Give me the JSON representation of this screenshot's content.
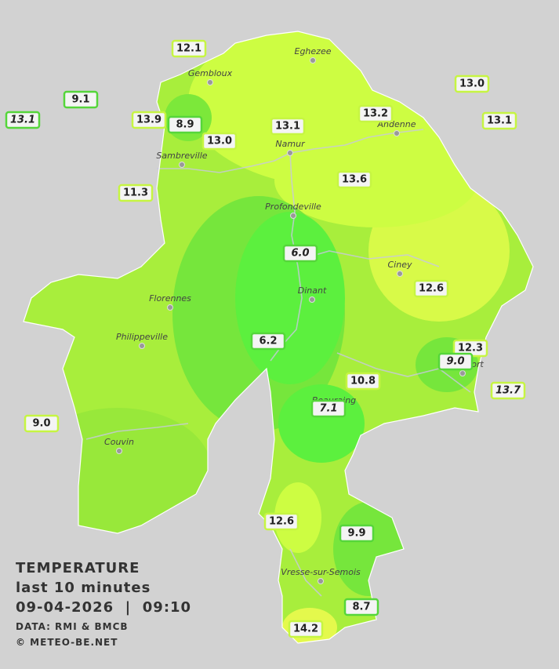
{
  "map": {
    "towns": [
      "Eghezee",
      "Gembloux",
      "Andenne",
      "Namur",
      "Sambreville",
      "Profondeville",
      "Ciney",
      "Dinant",
      "Florennes",
      "Philippeville",
      "Rochefort",
      "Beauraing",
      "Couvin",
      "Vresse-sur-Semois"
    ],
    "stations": [
      "12.1",
      "9.1",
      "13.1",
      "13.9",
      "8.9",
      "13.0",
      "13.1",
      "13.2",
      "13.0",
      "13.1",
      "11.3",
      "13.6",
      "6.0",
      "12.6",
      "6.2",
      "12.3",
      "9.0",
      "10.8",
      "13.7",
      "7.1",
      "9.0",
      "12.6",
      "9.9",
      "8.7",
      "14.2"
    ],
    "legend": {
      "title": "TEMPERATURE",
      "subtitle": "last 10 minutes",
      "datetime": "09-04-2026  |  09:10",
      "source": "DATA: RMI & BMCB",
      "copyright": "© METEO-BE.NET"
    }
  }
}
